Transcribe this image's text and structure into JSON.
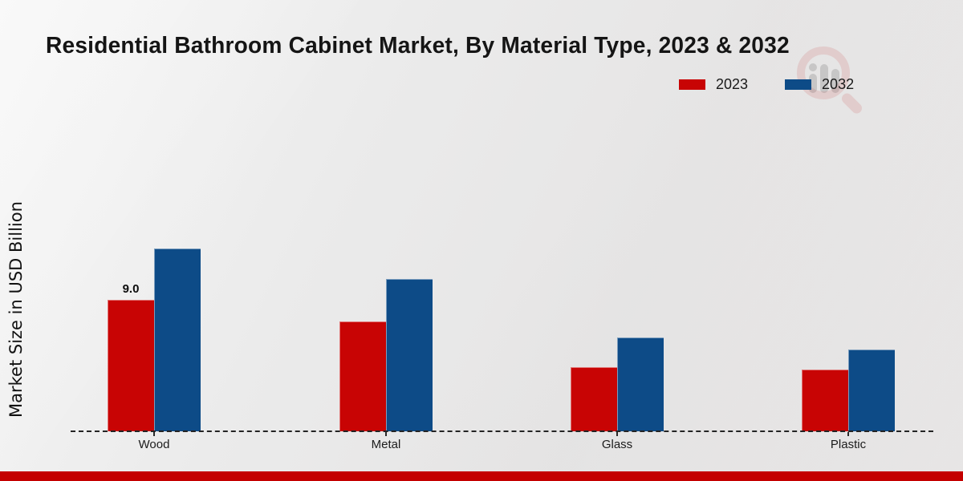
{
  "title": "Residential Bathroom Cabinet Market, By Material Type, 2023 & 2032",
  "ylabel": "Market Size in USD Billion",
  "legend": [
    {
      "label": "2023",
      "color": "#c80404"
    },
    {
      "label": "2032",
      "color": "#0d4b87"
    }
  ],
  "colors": {
    "series_2023": "#c80404",
    "series_2032": "#0d4b87",
    "footer_bar": "#c40000"
  },
  "watermark_icon": "magnifier-bar-chart-icon",
  "chart_data": {
    "type": "bar",
    "categories": [
      "Wood",
      "Metal",
      "Glass",
      "Plastic"
    ],
    "series": [
      {
        "name": "2023",
        "color": "#c80404",
        "values": [
          9.0,
          7.5,
          4.4,
          4.2
        ]
      },
      {
        "name": "2032",
        "color": "#0d4b87",
        "values": [
          12.5,
          10.4,
          6.4,
          5.6
        ]
      }
    ],
    "annotation": {
      "series": "2023",
      "category": "Wood",
      "text": "9.0"
    },
    "title": "Residential Bathroom Cabinet Market, By Material Type, 2023 & 2032",
    "xlabel": "",
    "ylabel": "Market Size in USD Billion",
    "ylim": [
      0,
      14.8
    ],
    "grid": false,
    "baseline_style": "dashed",
    "legend_position": "top-right"
  }
}
